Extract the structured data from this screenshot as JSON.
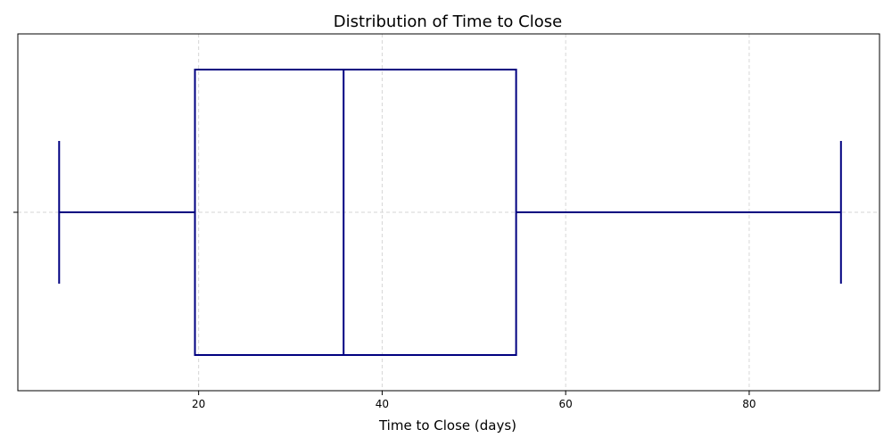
{
  "chart_data": {
    "type": "box",
    "title": "Distribution of Time to Close",
    "xlabel": "Time to Close (days)",
    "ylabel": "",
    "xlim": [
      0.3,
      94.2
    ],
    "xticks": [
      20,
      40,
      60,
      80
    ],
    "xtick_labels": [
      "20",
      "40",
      "60",
      "80"
    ],
    "grid": true,
    "orientation": "horizontal",
    "box": {
      "whisker_low": 4.8,
      "q1": 19.6,
      "median": 35.8,
      "q3": 54.6,
      "whisker_high": 90.0
    },
    "color": "#000080",
    "grid_color": "#cccccc"
  }
}
